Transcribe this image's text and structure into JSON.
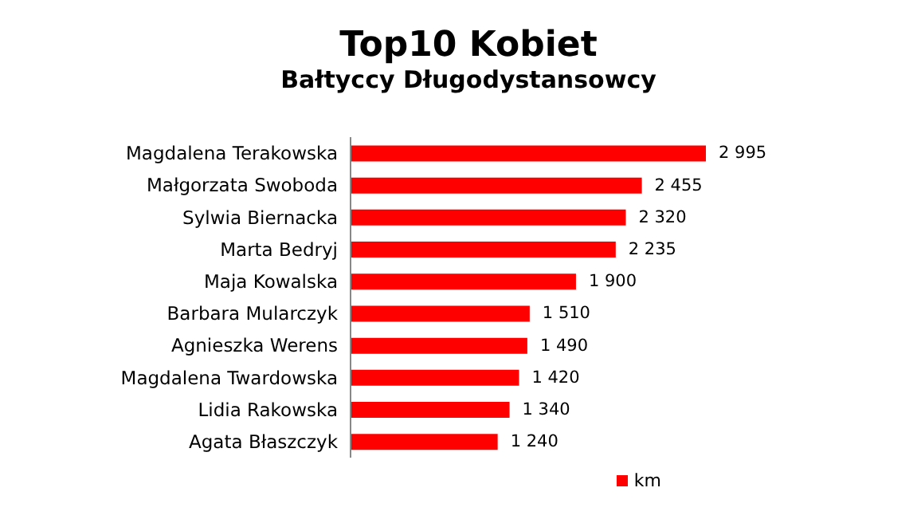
{
  "chart_data": {
    "type": "bar",
    "orientation": "horizontal",
    "title": "Top10 Kobiet",
    "subtitle": "Bałtyccy Długodystansowcy",
    "categories": [
      "Magdalena Terakowska",
      "Małgorzata Swoboda",
      "Sylwia Biernacka",
      "Marta Bedryj",
      "Maja Kowalska",
      "Barbara Mularczyk",
      "Agnieszka Werens",
      "Magdalena Twardowska",
      "Lidia Rakowska",
      "Agata Błaszczyk"
    ],
    "series": [
      {
        "name": "km",
        "color": "#ff0000",
        "values": [
          2995,
          2455,
          2320,
          2235,
          1900,
          1510,
          1490,
          1420,
          1340,
          1240
        ],
        "value_labels": [
          "2 995",
          "2 455",
          "2 320",
          "2 235",
          "1 900",
          "1 510",
          "1 490",
          "1 420",
          "1 340",
          "1 240"
        ]
      }
    ],
    "legend": "bottom right",
    "grid": false
  }
}
